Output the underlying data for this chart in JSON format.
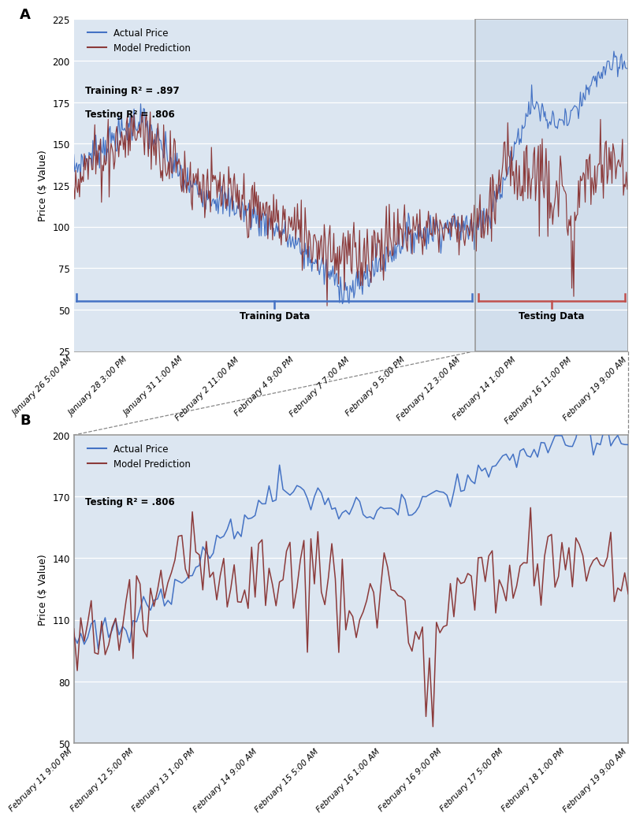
{
  "panel_a": {
    "ylabel": "Price ($ Value)",
    "ylim": [
      25,
      225
    ],
    "yticks": [
      25,
      50,
      75,
      100,
      125,
      150,
      175,
      200,
      225
    ],
    "xtick_labels": [
      "January 26 5:00 AM",
      "January 28 3:00 PM",
      "January 31 1:00 AM",
      "February 2 11:00 AM",
      "February 4 9:00 PM",
      "February 7 7:00 AM",
      "February 9 5:00 PM",
      "February 12 3:00 AM",
      "February 14 1:00 PM",
      "February 16 11:00 PM",
      "February 19 9:00 AM"
    ],
    "training_label": "Training Data",
    "testing_label": "Testing Data",
    "legend_actual": "Actual Price",
    "legend_model": "Model Prediction",
    "r2_training": "Training R² = .897",
    "r2_testing": "Testing R² = .806",
    "actual_color": "#4472C4",
    "model_color": "#8B3A3A",
    "training_bracket_color": "#4472C4",
    "testing_bracket_color": "#C0504D",
    "testing_box_color": "#D8D8D8"
  },
  "panel_b": {
    "ylabel": "Price ($ Value)",
    "ylim": [
      50,
      200
    ],
    "yticks": [
      50,
      80,
      110,
      140,
      170,
      200
    ],
    "xtick_labels": [
      "February 11 9:00 PM",
      "February 12 5:00 PM",
      "February 13 1:00 PM",
      "February 14 9:00 AM",
      "February 15 5:00 AM",
      "February 16 1:00 AM",
      "February 16 9:00 PM",
      "February 17 5:00 PM",
      "February 18 1:00 PM",
      "February 19 9:00 AM"
    ],
    "legend_actual": "Actual Price",
    "legend_model": "Model Prediction",
    "r2_testing": "Testing R² = .806",
    "actual_color": "#4472C4",
    "model_color": "#8B3A3A"
  },
  "bg_color": "#FFFFFF",
  "plot_bg_color": "#DCE6F1"
}
